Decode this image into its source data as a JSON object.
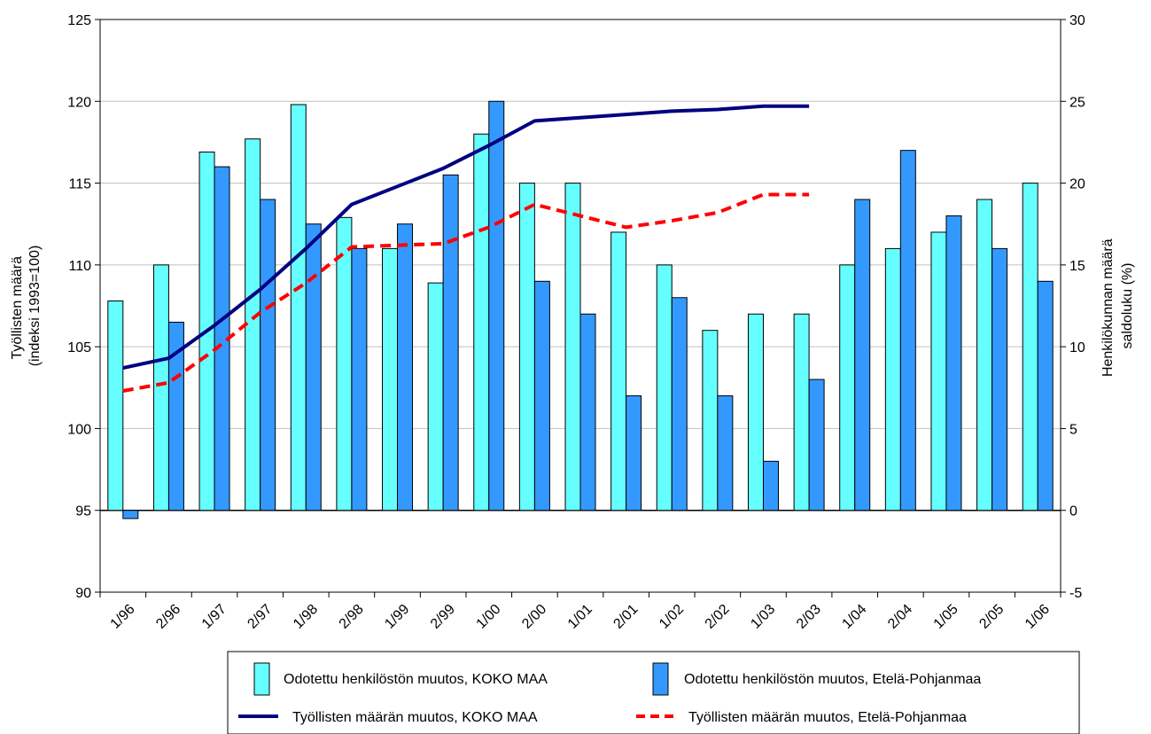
{
  "colors": {
    "bar_koko_maa": "#66ffff",
    "bar_etela_pohjanmaa": "#3399ff",
    "line_koko_maa": "#000080",
    "line_etela_pohjanmaa": "#ff0000",
    "gridline": "#c0c0c0",
    "axis": "#000000"
  },
  "chart_data": {
    "type": "bar",
    "categories": [
      "1/96",
      "2/96",
      "1/97",
      "2/97",
      "1/98",
      "2/98",
      "1/99",
      "2/99",
      "1/00",
      "2/00",
      "1/01",
      "2/01",
      "1/02",
      "2/02",
      "1/03",
      "2/03",
      "1/04",
      "2/04",
      "1/05",
      "2/05",
      "1/06"
    ],
    "y_left": {
      "label_lines": [
        "Työllisten määrä",
        "(indeksi 1993=100)"
      ],
      "range": [
        90,
        125
      ],
      "ticks": [
        "90",
        "95",
        "100",
        "105",
        "110",
        "115",
        "120",
        "125"
      ]
    },
    "y_right": {
      "label_lines": [
        "Henkilökunnan määrä",
        "saldoluku (%)"
      ],
      "range": [
        -5,
        30
      ],
      "ticks": [
        "-5",
        "0",
        "5",
        "10",
        "15",
        "20",
        "25",
        "30"
      ]
    },
    "grid": true,
    "legend_position": "bottom",
    "series": [
      {
        "name": "Odotettu henkilöstön muutos, KOKO MAA",
        "kind": "bar",
        "axis": "right",
        "values": [
          12.8,
          15,
          21.9,
          22.7,
          24.8,
          17.9,
          16,
          13.9,
          23,
          20,
          20,
          17,
          15,
          11,
          12,
          12,
          15,
          16,
          17,
          19,
          20
        ]
      },
      {
        "name": "Odotettu henkilöstön muutos, Etelä-Pohjanmaa",
        "kind": "bar",
        "axis": "right",
        "values": [
          -0.5,
          11.5,
          21,
          19,
          17.5,
          16,
          17.5,
          20.5,
          25,
          14,
          12,
          7,
          13,
          7,
          3,
          8,
          19,
          22,
          18,
          16,
          14
        ]
      },
      {
        "name": "Työllisten määrän  muutos, KOKO MAA",
        "kind": "line",
        "style": "solid",
        "axis": "left",
        "values": [
          103.7,
          104.3,
          106.3,
          108.5,
          111,
          113.7,
          114.8,
          115.9,
          117.3,
          118.8,
          119,
          119.2,
          119.4,
          119.5,
          119.7,
          119.7,
          null,
          null,
          null,
          null,
          null
        ]
      },
      {
        "name": "Työllisten määrän muutos, Etelä-Pohjanmaa",
        "kind": "line",
        "style": "dashed",
        "axis": "left",
        "values": [
          102.3,
          102.8,
          104.8,
          107.1,
          108.9,
          111.1,
          111.2,
          111.3,
          112.3,
          113.7,
          113,
          112.3,
          112.7,
          113.2,
          114.3,
          114.3,
          null,
          null,
          null,
          null,
          null
        ]
      }
    ]
  }
}
